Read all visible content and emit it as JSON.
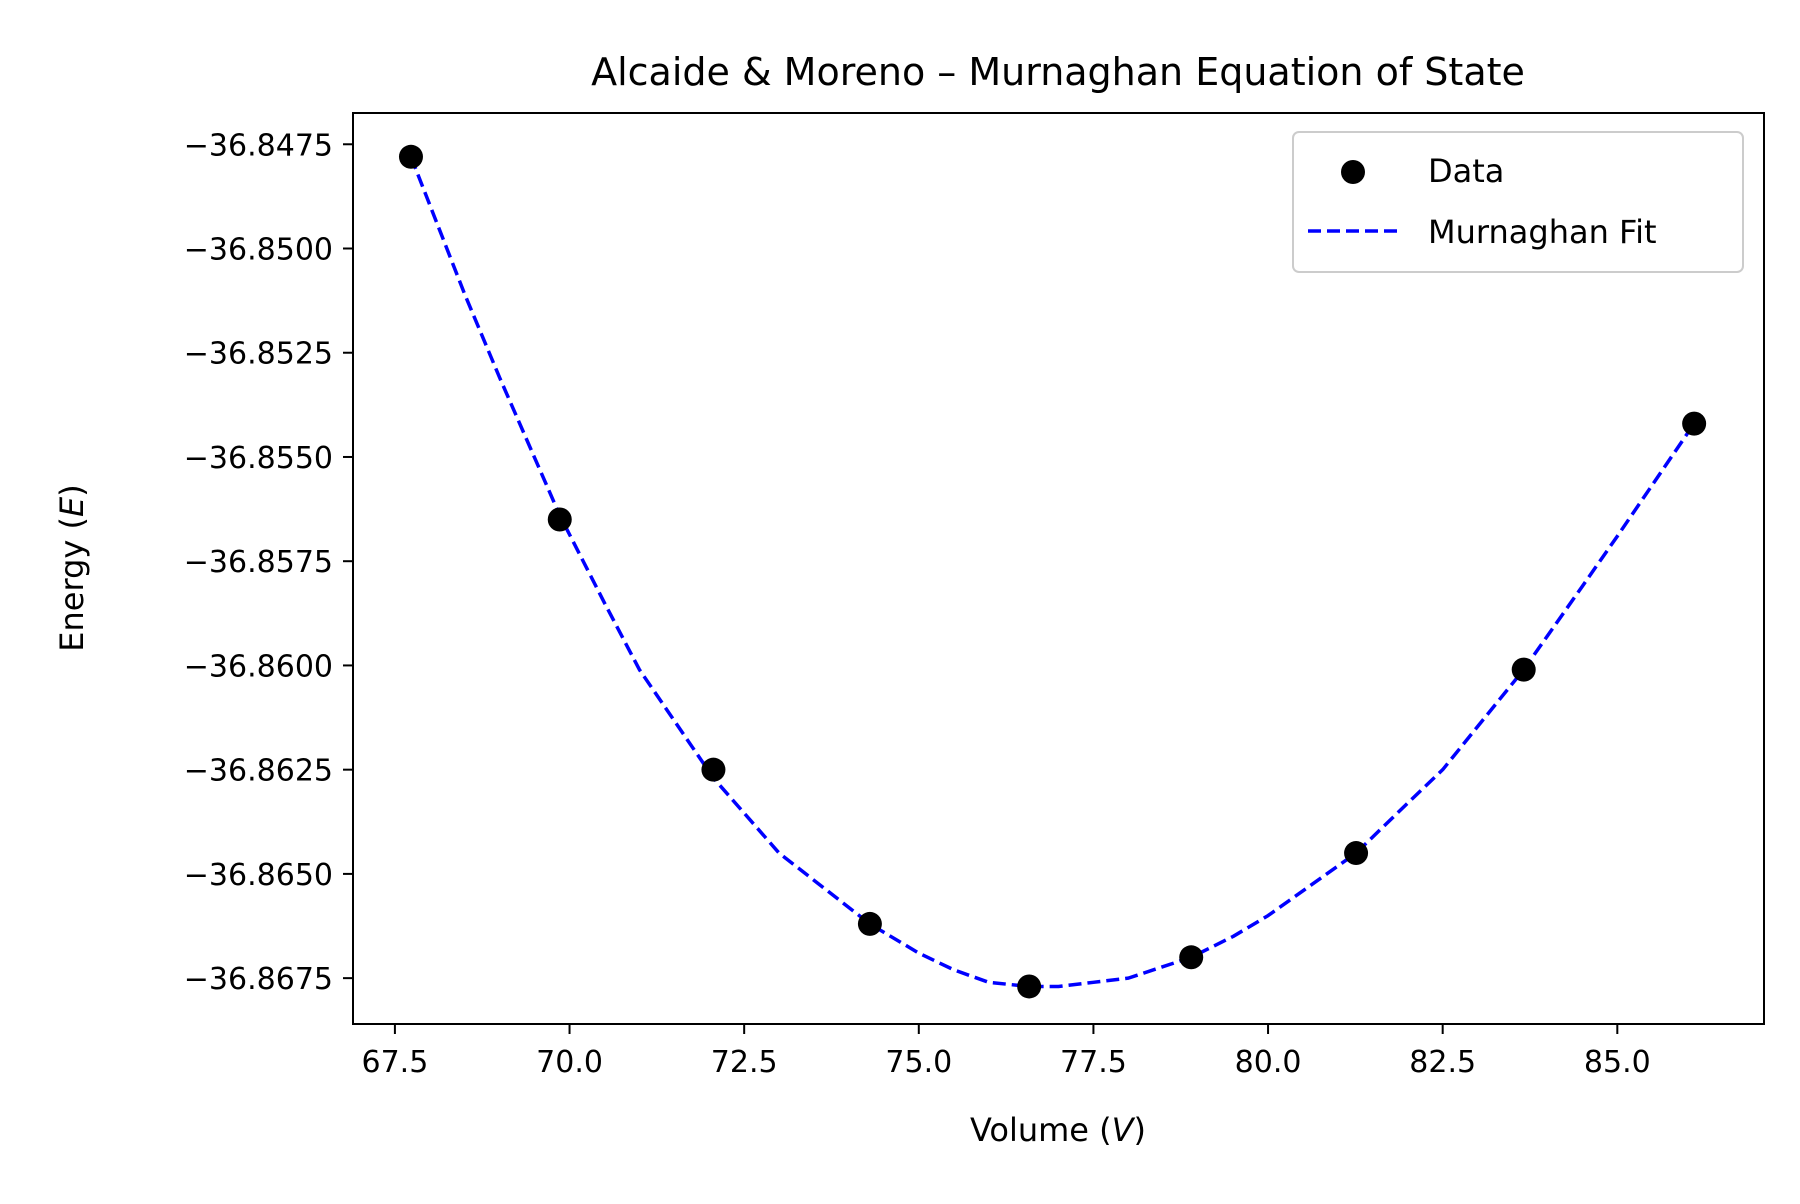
{
  "chart_data": {
    "type": "scatter",
    "title": "Alcaide & Moreno – Murnaghan Equation of State",
    "xlabel": {
      "prefix": "Volume (",
      "symbol": "V",
      "suffix": ")"
    },
    "ylabel": {
      "prefix": "Energy (",
      "symbol": "E",
      "suffix": ")"
    },
    "xlim": [
      66.9,
      87.1
    ],
    "ylim": [
      -36.8686,
      -36.84675
    ],
    "x_ticks": [
      67.5,
      70.0,
      72.5,
      75.0,
      77.5,
      80.0,
      82.5,
      85.0
    ],
    "x_tick_labels": [
      "67.5",
      "70.0",
      "72.5",
      "75.0",
      "77.5",
      "80.0",
      "82.5",
      "85.0"
    ],
    "y_ticks": [
      -36.8475,
      -36.85,
      -36.8525,
      -36.855,
      -36.8575,
      -36.86,
      -36.8625,
      -36.865,
      -36.8675
    ],
    "y_tick_labels": [
      "−36.8475",
      "−36.8500",
      "−36.8525",
      "−36.8550",
      "−36.8575",
      "−36.8600",
      "−36.8625",
      "−36.8650",
      "−36.8675"
    ],
    "grid": false,
    "legend_position": "top-right",
    "series": [
      {
        "name": "Data",
        "kind": "scatter",
        "color": "#000000",
        "x": [
          67.73,
          69.86,
          72.06,
          74.3,
          76.58,
          78.9,
          81.26,
          83.66,
          86.1
        ],
        "y": [
          -36.8478,
          -36.8565,
          -36.8625,
          -36.8662,
          -36.8677,
          -36.867,
          -36.8645,
          -36.8601,
          -36.8542
        ]
      },
      {
        "name": "Murnaghan Fit",
        "kind": "line",
        "style": "dashed",
        "color": "#0000ff",
        "x": [
          67.73,
          68.5,
          69.0,
          69.86,
          70.5,
          71.0,
          72.06,
          73.0,
          74.3,
          75.0,
          75.5,
          76.0,
          76.58,
          77.0,
          77.5,
          78.0,
          78.9,
          79.5,
          80.0,
          81.26,
          82.0,
          82.5,
          83.66,
          84.5,
          85.0,
          86.1
        ],
        "y": [
          -36.8478,
          -36.8511,
          -36.8531,
          -36.8564,
          -36.8585,
          -36.8601,
          -36.8627,
          -36.8645,
          -36.8662,
          -36.8669,
          -36.8673,
          -36.8676,
          -36.8677,
          -36.8677,
          -36.8676,
          -36.8675,
          -36.867,
          -36.8665,
          -36.866,
          -36.8645,
          -36.8633,
          -36.8625,
          -36.8601,
          -36.8581,
          -36.8569,
          -36.8542
        ]
      }
    ]
  }
}
